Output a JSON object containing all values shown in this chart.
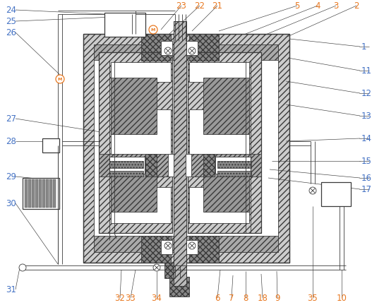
{
  "bg_color": "#ffffff",
  "lc": "#3a3a3a",
  "lc_orange": "#e87820",
  "lc_blue": "#4472c4",
  "hatch_dense": "////",
  "hatch_cross": "xxxx",
  "hatch_dot": "....",
  "fc_hatch": "#cccccc",
  "fc_dark": "#888888",
  "fc_med": "#bbbbbb",
  "fc_white": "#ffffff",
  "fig_w": 5.27,
  "fig_h": 4.32,
  "dpi": 100,
  "lw_main": 0.9,
  "lw_thin": 0.6,
  "lw_leader": 0.45,
  "top_labels": [
    [
      "2",
      505,
      8
    ],
    [
      "3",
      476,
      8
    ],
    [
      "4",
      450,
      8
    ],
    [
      "5",
      421,
      8
    ],
    [
      "21",
      308,
      8
    ],
    [
      "22",
      283,
      8
    ],
    [
      "23",
      257,
      8
    ]
  ],
  "right_labels": [
    [
      "1",
      512,
      66
    ],
    [
      "11",
      512,
      100
    ],
    [
      "12",
      512,
      132
    ],
    [
      "13",
      512,
      164
    ],
    [
      "14",
      512,
      196
    ],
    [
      "15",
      512,
      228
    ],
    [
      "16",
      512,
      252
    ],
    [
      "17",
      512,
      268
    ]
  ],
  "left_labels": [
    [
      "24",
      8,
      14
    ],
    [
      "25",
      8,
      30
    ],
    [
      "26",
      8,
      46
    ],
    [
      "27",
      8,
      168
    ],
    [
      "28",
      8,
      200
    ],
    [
      "29",
      8,
      250
    ],
    [
      "30",
      8,
      288
    ],
    [
      "31",
      8,
      410
    ]
  ],
  "bot_labels": [
    [
      "6",
      308,
      422
    ],
    [
      "7",
      328,
      422
    ],
    [
      "8",
      348,
      422
    ],
    [
      "18",
      372,
      422
    ],
    [
      "9",
      393,
      422
    ],
    [
      "32",
      170,
      422
    ],
    [
      "33",
      185,
      422
    ],
    [
      "34",
      222,
      422
    ],
    [
      "35",
      443,
      422
    ],
    [
      "10",
      484,
      422
    ]
  ]
}
